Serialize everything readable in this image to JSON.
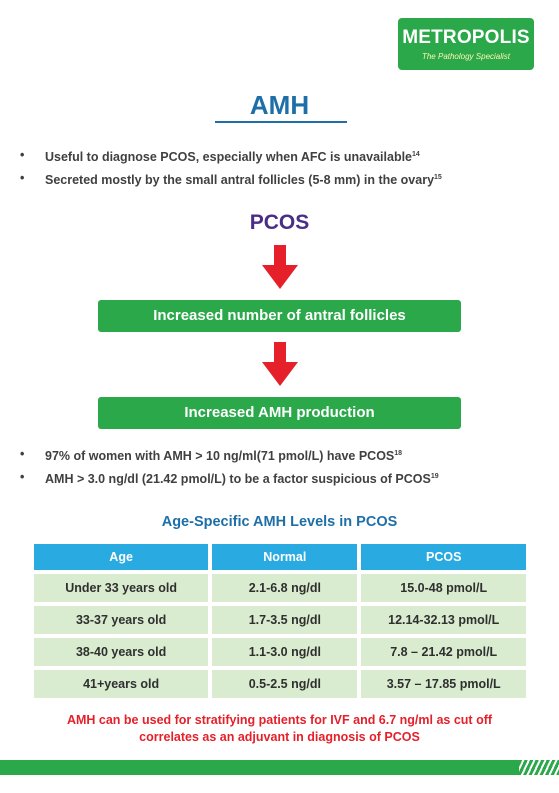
{
  "logo": {
    "name": "METROPOLIS",
    "tagline": "The Pathology Specialist",
    "brand_color": "#2aa84a"
  },
  "title": "AMH",
  "intro_bullets": [
    {
      "text": "Useful to diagnose PCOS, especially  when AFC is unavailable",
      "ref": "14"
    },
    {
      "text": "Secreted mostly by the small antral follicles (5-8 mm) in the ovary",
      "ref": "15"
    }
  ],
  "flow": {
    "start": "PCOS",
    "steps": [
      "Increased number of antral follicles",
      "Increased AMH production"
    ],
    "arrow_color": "#e5202a",
    "box_color": "#2aa84a"
  },
  "findings_bullets": [
    {
      "text": "97% of women  with AMH > 10 ng/ml(71 pmol/L)  have PCOS",
      "ref": "18"
    },
    {
      "text": "AMH > 3.0 ng/dl (21.42 pmol/L) to be a factor suspicious of PCOS",
      "ref": "19"
    }
  ],
  "table": {
    "title": "Age-Specific AMH Levels in PCOS",
    "headers": [
      "Age",
      "Normal",
      "PCOS"
    ],
    "rows": [
      [
        "Under 33 years old",
        "2.1-6.8 ng/dl",
        "15.0-48 pmol/L"
      ],
      [
        "33-37 years old",
        "1.7-3.5 ng/dl",
        "12.14-32.13 pmol/L"
      ],
      [
        "38-40 years old",
        "1.1-3.0 ng/dl",
        "7.8 – 21.42 pmol/L"
      ],
      [
        "41+years old",
        "0.5-2.5 ng/dl",
        "3.57 – 17.85 pmol/L"
      ]
    ]
  },
  "note": {
    "line1": "AMH can be used for stratifying patients for IVF and 6.7 ng/ml as cut off",
    "line2": "correlates as an adjuvant in diagnosis of PCOS"
  }
}
